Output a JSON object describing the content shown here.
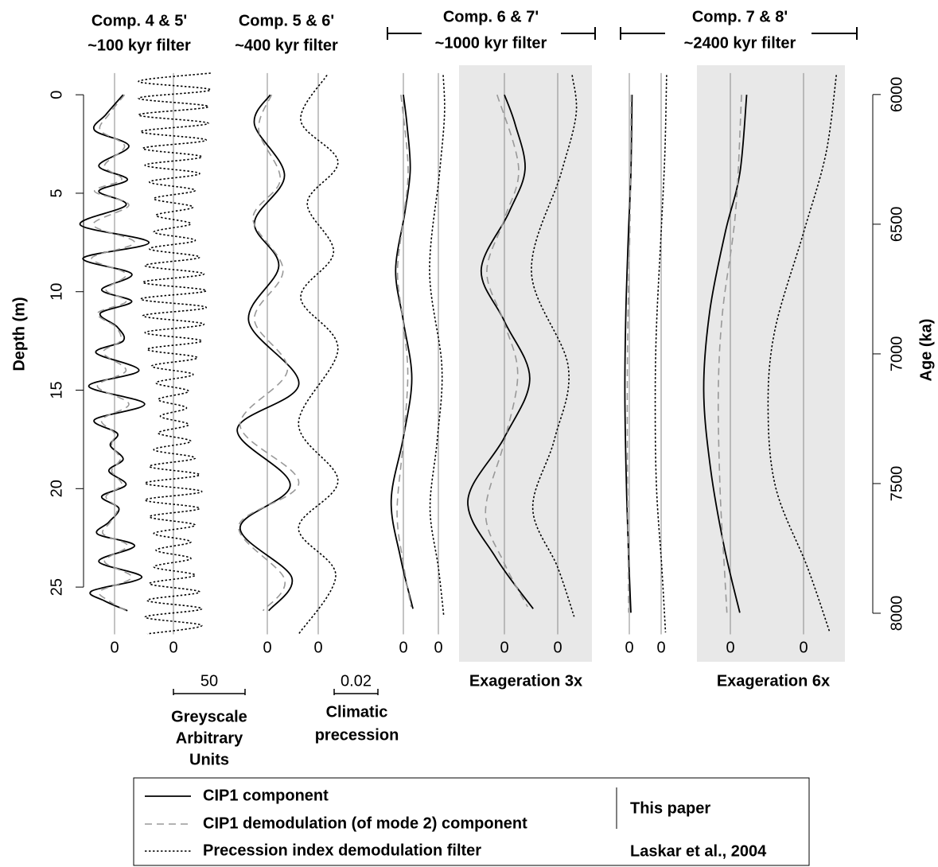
{
  "chart_data": {
    "type": "line",
    "ylabel": "Depth (m)",
    "ylim": [
      -1.5,
      27.5
    ],
    "yticks": [
      0,
      5,
      10,
      15,
      20,
      25
    ],
    "y2label": "Age (ka)",
    "y2lim": [
      5887,
      8089
    ],
    "y2ticks": [
      6000,
      6500,
      7000,
      7500,
      8000
    ],
    "panels": [
      {
        "title": [
          "Comp. 4 & 5'",
          "~100 kyr filter"
        ],
        "groups": [
          {
            "xticks": [
              0
            ],
            "series": [
              {
                "style": "solid",
                "color": "#000000",
                "depths": [
                  0,
                  1.0,
                  1.8,
                  2.6,
                  3.6,
                  4.3,
                  4.9,
                  5.6,
                  6.6,
                  7.5,
                  8.3,
                  9.1,
                  9.9,
                  10.5,
                  11.1,
                  11.8,
                  12.5,
                  13.1,
                  14.0,
                  14.8,
                  15.7,
                  16.5,
                  17.2,
                  17.8,
                  18.5,
                  19.1,
                  19.8,
                  20.4,
                  21.0,
                  21.7,
                  22.3,
                  22.9,
                  23.7,
                  24.5,
                  25.2,
                  25.7,
                  26.2
                ],
                "values": [
                  6,
                  -6,
                  -14,
                  10,
                  -11,
                  9,
                  -11,
                  8,
                  -24,
                  24,
                  -22,
                  12,
                  -9,
                  12,
                  -10,
                  2,
                  6,
                  -13,
                  17,
                  -18,
                  21,
                  -14,
                  2,
                  -3,
                  6,
                  -4,
                  8,
                  -9,
                  3,
                  -4,
                  -12,
                  14,
                  -11,
                  19,
                  -16,
                  -7,
                  9
                ]
              },
              {
                "style": "dashed",
                "color": "#999999",
                "depths": [
                  0,
                  1.0,
                  1.8,
                  2.6,
                  3.6,
                  4.3,
                  4.9,
                  5.6,
                  6.6,
                  7.5,
                  8.3,
                  9.1,
                  9.9,
                  10.5,
                  11.1,
                  11.8,
                  12.5,
                  13.1,
                  14.0,
                  14.8,
                  15.7,
                  16.5,
                  17.2,
                  17.8,
                  18.5,
                  19.1,
                  19.8,
                  20.4,
                  21.0,
                  21.7,
                  22.3,
                  22.9,
                  23.7,
                  24.5,
                  25.2,
                  25.7,
                  26.2
                ],
                "values": [
                  7,
                  -4,
                  -10,
                  7,
                  -7,
                  5,
                  -14,
                  10,
                  -15,
                  14,
                  -16,
                  8,
                  -6,
                  8,
                  -12,
                  1,
                  4,
                  -8,
                  8,
                  -12,
                  10,
                  -9,
                  0,
                  -2,
                  4,
                  -2,
                  5,
                  -6,
                  2,
                  -3,
                  -8,
                  9,
                  -7,
                  12,
                  -10,
                  -4,
                  8
                ]
              }
            ]
          },
          {
            "xticks": [
              0
            ],
            "series": [
              {
                "style": "dotted",
                "color": "#000000",
                "depths": [
                  -1.1,
                  -0.675,
                  -0.25,
                  0.175,
                  0.6,
                  1.025,
                  1.45,
                  1.875,
                  2.3,
                  2.725,
                  3.15,
                  3.575,
                  4.0,
                  4.425,
                  4.85,
                  5.275,
                  5.7,
                  6.125,
                  6.55,
                  6.975,
                  7.4,
                  7.825,
                  8.25,
                  8.675,
                  9.1,
                  9.525,
                  9.95,
                  10.375,
                  10.8,
                  11.225,
                  11.65,
                  12.075,
                  12.5,
                  12.925,
                  13.35,
                  13.775,
                  14.2,
                  14.625,
                  15.05,
                  15.475,
                  15.9,
                  16.325,
                  16.75,
                  17.175,
                  17.6,
                  18.025,
                  18.45,
                  18.875,
                  19.3,
                  19.725,
                  20.15,
                  20.575,
                  21.0,
                  21.425,
                  21.85,
                  22.275,
                  22.7,
                  23.125,
                  23.55,
                  23.975,
                  24.4,
                  24.825,
                  25.25,
                  25.675,
                  26.1,
                  26.525,
                  26.95,
                  27.375
                ],
                "values": [
                  0.017,
                  -0.016,
                  0.017,
                  -0.016,
                  0.016,
                  -0.016,
                  0.016,
                  -0.015,
                  0.015,
                  -0.014,
                  0.013,
                  -0.013,
                  0.012,
                  -0.011,
                  0.01,
                  -0.009,
                  0.009,
                  -0.008,
                  0.008,
                  -0.009,
                  0.01,
                  -0.011,
                  0.012,
                  -0.013,
                  0.014,
                  -0.014,
                  0.015,
                  -0.015,
                  0.015,
                  -0.014,
                  0.014,
                  -0.013,
                  0.013,
                  -0.012,
                  0.011,
                  -0.01,
                  0.009,
                  -0.008,
                  0.007,
                  -0.007,
                  0.006,
                  -0.006,
                  0.007,
                  -0.007,
                  0.008,
                  -0.009,
                  0.01,
                  -0.011,
                  0.012,
                  -0.013,
                  0.013,
                  -0.013,
                  0.012,
                  -0.011,
                  0.01,
                  -0.009,
                  0.008,
                  -0.008,
                  0.008,
                  -0.009,
                  0.01,
                  -0.011,
                  0.012,
                  -0.012,
                  0.013,
                  -0.013,
                  0.013,
                  -0.012
                ]
              }
            ]
          }
        ]
      },
      {
        "title": [
          "Comp. 5 & 6'",
          "~400 kyr filter"
        ],
        "groups": [
          {
            "xticks": [
              0
            ],
            "series": [
              {
                "style": "solid",
                "color": "#000000",
                "depths": [
                  0,
                  1.5,
                  4.1,
                  6.5,
                  8.7,
                  11.5,
                  14.7,
                  17.0,
                  19.8,
                  22.0,
                  24.5,
                  26.2
                ],
                "values": [
                  2,
                  -9,
                  12,
                  -9,
                  8,
                  -13,
                  22,
                  -21,
                  16,
                  -19,
                  17,
                  1
                ]
              },
              {
                "style": "dashed",
                "color": "#999999",
                "depths": [
                  0,
                  1.8,
                  4.3,
                  6.3,
                  8.9,
                  11.4,
                  14.0,
                  16.8,
                  19.7,
                  21.9,
                  24.6,
                  26.2
                ],
                "values": [
                  3,
                  -6,
                  9,
                  -10,
                  11,
                  -9,
                  14,
                  -19,
                  22,
                  -20,
                  12,
                  -3
                ]
              }
            ]
          },
          {
            "xticks": [
              0
            ],
            "series": [
              {
                "style": "dotted",
                "color": "#000000",
                "depths": [
                  -1.0,
                  1.3,
                  3.4,
                  5.5,
                  8.0,
                  10.3,
                  12.9,
                  16.7,
                  19.6,
                  22.0,
                  24.4,
                  27.4
                ],
                "values": [
                  0.004,
                  -0.008,
                  0.009,
                  -0.005,
                  0.007,
                  -0.008,
                  0.009,
                  -0.009,
                  0.009,
                  -0.009,
                  0.008,
                  -0.009
                ]
              }
            ]
          }
        ]
      },
      {
        "title": [
          "Comp. 6 & 7'",
          "~1000 kyr filter"
        ],
        "exaggeration": 3,
        "exaggeration_label": "Exageration 3x",
        "groups": [
          {
            "xticks": [
              0
            ],
            "series": [
              {
                "style": "solid",
                "color": "#000000",
                "depths": [
                  0,
                  1.5,
                  3.8,
                  6.0,
                  8.9,
                  11.5,
                  14.4,
                  17.4,
                  20.6,
                  23.5,
                  26.1
                ],
                "values": [
                  0,
                  2.5,
                  4.8,
                  1,
                  -5.4,
                  0,
                  5.9,
                  0,
                  -8.5,
                  -2,
                  6.7
                ]
              },
              {
                "style": "dashed",
                "color": "#999999",
                "depths": [
                  0,
                  3.7,
                  6.3,
                  9.0,
                  11.6,
                  14.2,
                  17.6,
                  21.2,
                  23.8,
                  26.0
                ],
                "values": [
                  -1.7,
                  3.3,
                  0,
                  -4.1,
                  0,
                  3.1,
                  0,
                  -4.4,
                  0,
                  5.4
                ]
              }
            ]
          },
          {
            "xticks": [
              0
            ],
            "series": [
              {
                "style": "dotted",
                "color": "#000000",
                "depths": [
                  -1.0,
                  1.0,
                  4.0,
                  9.0,
                  13.8,
                  17.5,
                  21.0,
                  24.0,
                  26.5
                ],
                "values": [
                  0.0022,
                  0.0028,
                  0.0005,
                  -0.004,
                  0.0016,
                  -0.0005,
                  -0.0038,
                  0.0,
                  0.0025
                ]
              }
            ]
          }
        ]
      },
      {
        "title": [
          "Comp. 7 & 8'",
          "~2400 kyr filter"
        ],
        "exaggeration": 6,
        "exaggeration_label": "Exageration 6x",
        "groups": [
          {
            "xticks": [
              0
            ],
            "series": [
              {
                "style": "solid",
                "color": "#000000",
                "depths": [
                  0,
                  4,
                  7,
                  11,
                  15,
                  19,
                  23,
                  26.3
                ],
                "values": [
                  1.9,
                  1.1,
                  -0.6,
                  -2.4,
                  -3.1,
                  -2.3,
                  -0.7,
                  1.1
                ]
              },
              {
                "style": "dashed",
                "color": "#999999",
                "depths": [
                  0,
                  6,
                  11,
                  15,
                  20,
                  24,
                  26.3
                ],
                "values": [
                  1.3,
                  0.6,
                  -0.9,
                  -1.4,
                  -1.2,
                  -0.7,
                  -0.4
                ]
              }
            ]
          },
          {
            "xticks": [
              0
            ],
            "series": [
              {
                "style": "dotted",
                "color": "#000000",
                "depths": [
                  -1,
                  3,
                  7,
                  12,
                  16,
                  20,
                  24,
                  27.3
                ],
                "values": [
                  0.0025,
                  0.0017,
                  0,
                  -0.0022,
                  -0.0027,
                  -0.0021,
                  0.0003,
                  0.002
                ]
              }
            ]
          }
        ]
      }
    ],
    "scale_bars": [
      {
        "value": 50,
        "caption": [
          "Greyscale",
          "Arbitrary",
          "Units"
        ]
      },
      {
        "value": 0.02,
        "caption": [
          "Climatic",
          "precession"
        ]
      }
    ],
    "legend": {
      "entries": [
        {
          "name": "CIP1 component",
          "style": "solid",
          "color": "#000000"
        },
        {
          "name": "CIP1 demodulation (of mode 2) component",
          "style": "dashed",
          "color": "#999999"
        },
        {
          "name": "Precession index demodulation filter",
          "style": "dotted",
          "color": "#000000"
        }
      ],
      "sources": [
        "This paper",
        "Laskar et al., 2004"
      ]
    }
  }
}
